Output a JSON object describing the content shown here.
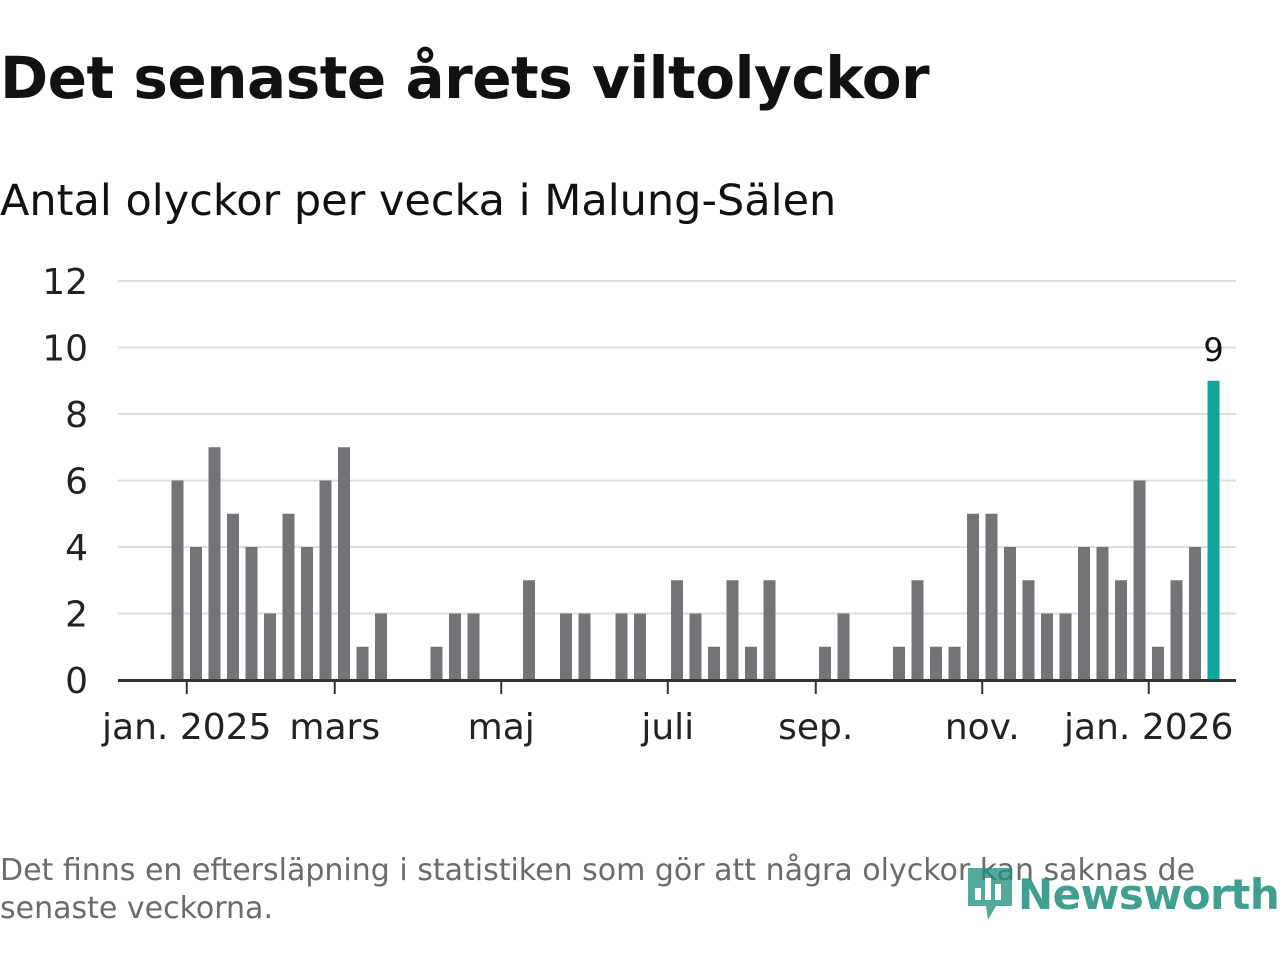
{
  "header": {
    "title": "Det senaste årets viltolyckor",
    "subtitle": "Antal olyckor per vecka i Malung-Sälen"
  },
  "footer": {
    "note": "Det finns en eftersläpning i statistiken som gör att några olyckor kan saknas de senaste veckorna.",
    "logo_text": "Newsworthy",
    "logo_icon": "bar-chart-speech-bubble-icon"
  },
  "colors": {
    "bar": "#747378",
    "highlight": "#11a69d",
    "grid": "#dddddd",
    "axis": "#333333",
    "logo": "#1f8f7e"
  },
  "chart_data": {
    "type": "bar",
    "title": "Det senaste årets viltolyckor",
    "subtitle": "Antal olyckor per vecka i Malung-Sälen",
    "xlabel": "",
    "ylabel": "",
    "ylim": [
      0,
      12
    ],
    "yticks": [
      0,
      2,
      4,
      6,
      8,
      10,
      12
    ],
    "grid": true,
    "values": [
      6,
      4,
      7,
      5,
      4,
      2,
      5,
      4,
      6,
      7,
      1,
      2,
      0,
      0,
      1,
      2,
      2,
      0,
      0,
      3,
      0,
      2,
      2,
      0,
      2,
      2,
      0,
      3,
      2,
      1,
      3,
      1,
      3,
      0,
      0,
      1,
      2,
      0,
      0,
      1,
      3,
      1,
      1,
      5,
      5,
      4,
      3,
      2,
      2,
      4,
      4,
      3,
      6,
      1,
      3,
      4,
      9
    ],
    "highlight_index": 56,
    "highlight_label": "9",
    "xticks": [
      {
        "label": "jan. 2025",
        "position": 0.5
      },
      {
        "label": "mars",
        "position": 8.5
      },
      {
        "label": "maj",
        "position": 17.5
      },
      {
        "label": "juli",
        "position": 26.5
      },
      {
        "label": "sep.",
        "position": 34.5
      },
      {
        "label": "nov.",
        "position": 43.5
      },
      {
        "label": "jan. 2026",
        "position": 52.5
      }
    ]
  }
}
